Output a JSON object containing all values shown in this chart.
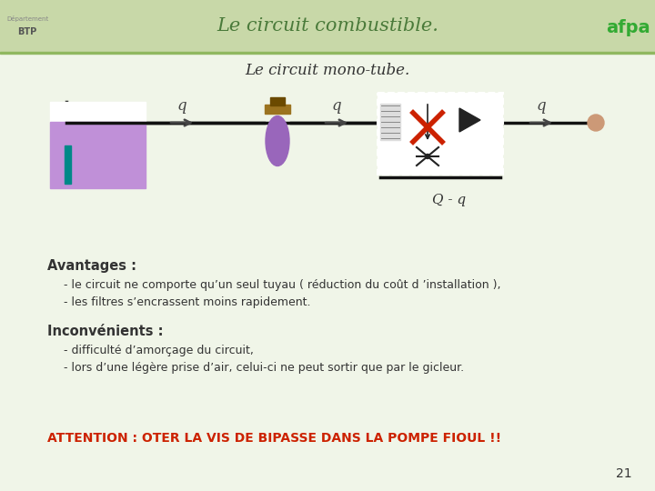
{
  "title": "Le circuit combustible.",
  "subtitle": "Le circuit mono-tube.",
  "bg_color": "#e8f0d8",
  "header_bg": "#c8dca0",
  "header_line_color": "#a0c060",
  "title_color": "#4a7a3a",
  "text_color": "#333333",
  "red_text": "ATTENTION : OTER LA VIS DE BIPASSE DANS LA POMPE FIOUL !!",
  "red_color": "#cc2200",
  "page_number": "21",
  "avantages_title": "Avantages :",
  "avantages_lines": [
    "- le circuit ne comporte qu’un seul tuyau ( réduction du coût d ’installation ),",
    "- les filtres s’encrassent moins rapidement."
  ],
  "inconvenients_title": "Inconvénients :",
  "inconvenients_lines": [
    "- difficulté d’amorçage du circuit,",
    "- lors d’une légère prise d’air, celui-ci ne peut sortir que par le gicleur."
  ],
  "tank_purple": "#c090d8",
  "tank_white": "#ffffff",
  "pipe_color": "#111111",
  "filter_purple": "#9966bb",
  "filter_cap_color": "#7a5010",
  "filter_cap2_color": "#554010",
  "pump_box_border": "#777777",
  "x_color": "#cc2200",
  "q_label_color": "#444444",
  "qqq_label": "Q - q",
  "nozzle_color": "#cc9977",
  "teal_sensor": "#008888",
  "white_color": "#ffffff"
}
